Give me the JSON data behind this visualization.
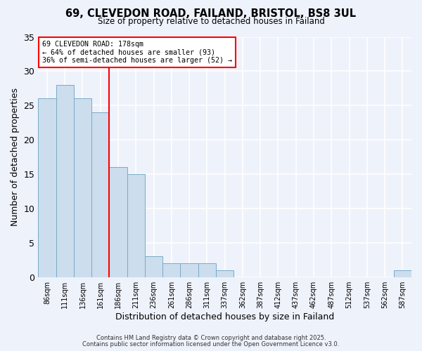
{
  "title": "69, CLEVEDON ROAD, FAILAND, BRISTOL, BS8 3UL",
  "subtitle": "Size of property relative to detached houses in Failand",
  "xlabel": "Distribution of detached houses by size in Failand",
  "ylabel": "Number of detached properties",
  "bar_color": "#ccdded",
  "bar_edge_color": "#7aaac8",
  "background_color": "#eef2fb",
  "grid_color": "#ffffff",
  "bin_labels": [
    "86sqm",
    "111sqm",
    "136sqm",
    "161sqm",
    "186sqm",
    "211sqm",
    "236sqm",
    "261sqm",
    "286sqm",
    "311sqm",
    "337sqm",
    "362sqm",
    "387sqm",
    "412sqm",
    "437sqm",
    "462sqm",
    "487sqm",
    "512sqm",
    "537sqm",
    "562sqm",
    "587sqm"
  ],
  "bar_heights": [
    26,
    28,
    26,
    24,
    16,
    15,
    3,
    2,
    2,
    2,
    1,
    0,
    0,
    0,
    0,
    0,
    0,
    0,
    0,
    0,
    1
  ],
  "property_line_label": "69 CLEVEDON ROAD: 178sqm",
  "annotation_line2": "← 64% of detached houses are smaller (93)",
  "annotation_line3": "36% of semi-detached houses are larger (52) →",
  "ylim": [
    0,
    35
  ],
  "yticks": [
    0,
    5,
    10,
    15,
    20,
    25,
    30,
    35
  ],
  "red_line_bin_index": 3.5,
  "footer1": "Contains HM Land Registry data © Crown copyright and database right 2025.",
  "footer2": "Contains public sector information licensed under the Open Government Licence v3.0."
}
